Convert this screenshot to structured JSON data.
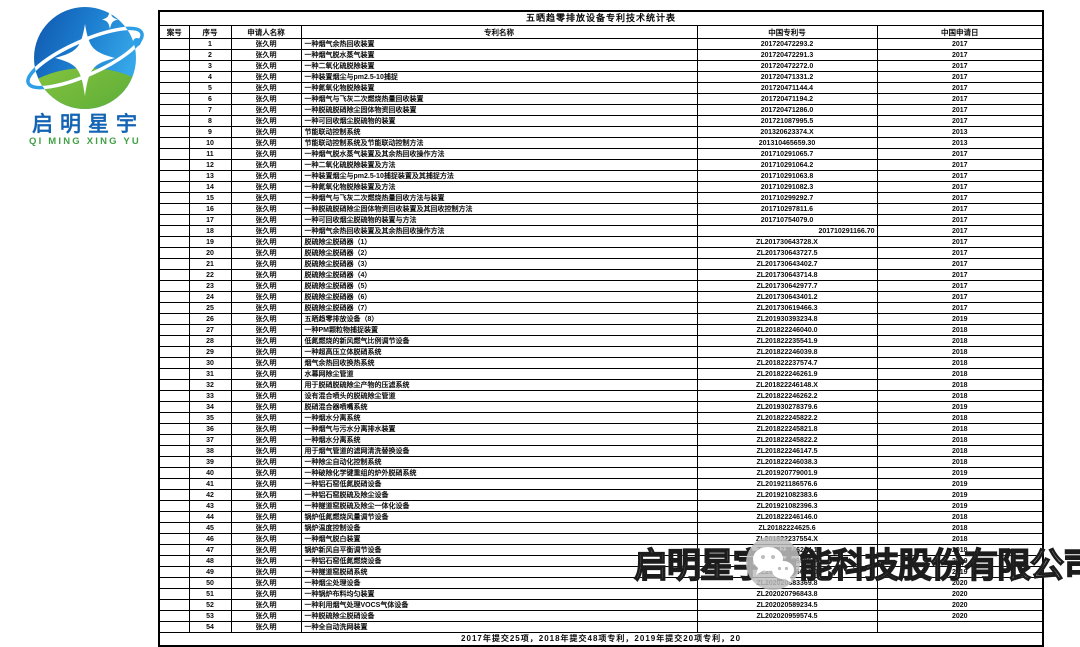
{
  "logo": {
    "name_cn": "启明星宇",
    "name_en": "QI MING XING YU",
    "colors": {
      "blue_dark": "#1259b5",
      "blue_light": "#2e9fe6",
      "green": "#4caf50"
    }
  },
  "table": {
    "title": "五晒趋零排放设备专利技术统计表",
    "headers": [
      "案号",
      "序号",
      "申请人名称",
      "专利名称",
      "中国专利号",
      "中国申请日"
    ],
    "applicant": "张久明",
    "rows": [
      {
        "s": "1",
        "n": "一种烟气余热回收装置",
        "p": "201720472293.2",
        "d": "2017"
      },
      {
        "s": "2",
        "n": "一种烟气脱水蒸气装置",
        "p": "201720472291.3",
        "d": "2017"
      },
      {
        "s": "3",
        "n": "一种二氧化硫脱除装置",
        "p": "201720472272.0",
        "d": "2017"
      },
      {
        "s": "4",
        "n": "一种装置烟尘与pm2.5-10捕捉",
        "p": "201720471331.2",
        "d": "2017"
      },
      {
        "s": "5",
        "n": "一种氮氧化物脱除装置",
        "p": "201720471144.4",
        "d": "2017"
      },
      {
        "s": "6",
        "n": "一种烟气与飞灰二次燃烧热量回收装置",
        "p": "201720471194.2",
        "d": "2017"
      },
      {
        "s": "7",
        "n": "一种脱硫脱硝除尘固体物资回收装置",
        "p": "201720471286.0",
        "d": "2017"
      },
      {
        "s": "8",
        "n": "一种可回收烟尘脱硫物的装置",
        "p": "201721087995.5",
        "d": "2017"
      },
      {
        "s": "9",
        "n": "节能联动控制系统",
        "p": "201320623374.X",
        "d": "2013"
      },
      {
        "s": "10",
        "n": "节能联动控制系统及节能联动控制方法",
        "p": "201310465659.30",
        "d": "2013"
      },
      {
        "s": "11",
        "n": "一种烟气脱水蒸气装置及其余热回收操作方法",
        "p": "201710291065.7",
        "d": "2017"
      },
      {
        "s": "12",
        "n": "一种二氧化硫脱除装置及方法",
        "p": "201710291064.2",
        "d": "2017"
      },
      {
        "s": "13",
        "n": "一种装置烟尘与pm2.5-10捕捉装置及其捕捉方法",
        "p": "201710291063.8",
        "d": "2017"
      },
      {
        "s": "14",
        "n": "一种氮氧化物脱除装置及方法",
        "p": "201710291082.3",
        "d": "2017"
      },
      {
        "s": "15",
        "n": "一种烟气与飞灰二次燃烧热量回收方法与装置",
        "p": "201710299292.7",
        "d": "2017"
      },
      {
        "s": "16",
        "n": "一种脱硫脱硝除尘固体物资回收装置及其回收控制方法",
        "p": "201710297811.6",
        "d": "2017"
      },
      {
        "s": "17",
        "n": "一种可回收烟尘脱硫物的装置与方法",
        "p": "201710754079.0",
        "d": "2017"
      },
      {
        "s": "18",
        "n": "一种烟气余热回收装置及其余热回收操作方法",
        "p": "201710291166.70",
        "d": "2017",
        "align": "right"
      },
      {
        "s": "19",
        "n": "脱硫除尘脱硝器（1）",
        "p": "ZL201730643728.X",
        "d": "2017"
      },
      {
        "s": "20",
        "n": "脱硫除尘脱硝器（2）",
        "p": "ZL201730643727.5",
        "d": "2017"
      },
      {
        "s": "21",
        "n": "脱硫除尘脱硝器（3）",
        "p": "ZL201730643402.7",
        "d": "2017"
      },
      {
        "s": "22",
        "n": "脱硫除尘脱硝器（4）",
        "p": "ZL201730643714.8",
        "d": "2017"
      },
      {
        "s": "23",
        "n": "脱硫除尘脱硝器（5）",
        "p": "ZL201730642977.7",
        "d": "2017"
      },
      {
        "s": "24",
        "n": "脱硫除尘脱硝器（6）",
        "p": "ZL201730643401.2",
        "d": "2017"
      },
      {
        "s": "25",
        "n": "脱硫除尘脱硝器（7）",
        "p": "ZL201730619466.3",
        "d": "2017"
      },
      {
        "s": "26",
        "n": "五晒趋零排放设备（8）",
        "p": "ZL201930393234.8",
        "d": "2019"
      },
      {
        "s": "27",
        "n": "一种PM颗粒物捕捉装置",
        "p": "ZL201822246040.0",
        "d": "2018"
      },
      {
        "s": "28",
        "n": "低氮燃烧的新风燃气比例调节设备",
        "p": "ZL201822235541.9",
        "d": "2018"
      },
      {
        "s": "29",
        "n": "一种超高压立体脱硝系统",
        "p": "ZL201822246039.8",
        "d": "2018"
      },
      {
        "s": "30",
        "n": "烟气余热回收换热系统",
        "p": "ZL201822237574.7",
        "d": "2018"
      },
      {
        "s": "31",
        "n": "水幕网除尘管道",
        "p": "ZL201822246261.9",
        "d": "2018"
      },
      {
        "s": "32",
        "n": "用于脱硝脱硫除尘产物的压滤系统",
        "p": "ZL201822246148.X",
        "d": "2018"
      },
      {
        "s": "33",
        "n": "设有混合喷头的脱硫除尘管道",
        "p": "ZL201822246262.2",
        "d": "2018"
      },
      {
        "s": "34",
        "n": "脱硝混合器喷嘴系统",
        "p": "ZL201930278379.6",
        "d": "2019"
      },
      {
        "s": "35",
        "n": "一种烟水分离系统",
        "p": "ZL201822245822.2",
        "d": "2018"
      },
      {
        "s": "36",
        "n": "一种烟气与污水分离排水装置",
        "p": "ZL201822245821.8",
        "d": "2018"
      },
      {
        "s": "37",
        "n": "一种烟水分离系统",
        "p": "ZL201822245822.2",
        "d": "2018"
      },
      {
        "s": "38",
        "n": "用于烟气管道的滤网清洗替换设备",
        "p": "ZL201822246147.5",
        "d": "2018"
      },
      {
        "s": "39",
        "n": "一种除尘自动化控制系统",
        "p": "ZL201822246038.3",
        "d": "2018"
      },
      {
        "s": "40",
        "n": "一种破除化学键重组的炉外脱硝系统",
        "p": "ZL201920779001.9",
        "d": "2019"
      },
      {
        "s": "41",
        "n": "一种铝石窑低氮脱硝设备",
        "p": "ZL201921186576.6",
        "d": "2019"
      },
      {
        "s": "42",
        "n": "一种铝石窑脱硫及除尘设备",
        "p": "ZL201921082383.6",
        "d": "2019"
      },
      {
        "s": "43",
        "n": "一种隧道窑脱硫及除尘一体化设备",
        "p": "ZL201921082396.3",
        "d": "2019"
      },
      {
        "s": "44",
        "n": "锅炉低氮燃烧风量调节设备",
        "p": "ZL201822246146.0",
        "d": "2018"
      },
      {
        "s": "45",
        "n": "锅炉温度控制设备",
        "p": "ZL20182224625.6",
        "d": "2018"
      },
      {
        "s": "46",
        "n": "一种烟气脱白装置",
        "p": "ZL201822237554.X",
        "d": "2018"
      },
      {
        "s": "47",
        "n": "锅炉新风自平衡调节设备",
        "p": "ZL201822246264.1",
        "d": "2018"
      },
      {
        "s": "48",
        "n": "一种铝石窑低氮燃烧设备",
        "p": "ZL201921186526.4",
        "d": "2019"
      },
      {
        "s": "49",
        "n": "一种隧道窑脱硝系统",
        "p": "ZL201921186672.0",
        "d": "2019"
      },
      {
        "s": "50",
        "n": "一种烟尘处理设备",
        "p": "ZL202020683369.8",
        "d": "2020"
      },
      {
        "s": "51",
        "n": "一种锅炉布料均匀装置",
        "p": "ZL202020796843.8",
        "d": "2020"
      },
      {
        "s": "52",
        "n": "一种利用烟气处理VOCS气体设备",
        "p": "ZL202020589234.5",
        "d": "2020"
      },
      {
        "s": "53",
        "n": "一种脱硫除尘脱硝设备",
        "p": "ZL202020959574.5",
        "d": "2020"
      },
      {
        "s": "54",
        "n": "一种全自动洗网装置",
        "p": "",
        "d": ""
      }
    ],
    "footer": "2017年提交25项，2018年提交48项专利，2019年提交20项专利，20"
  },
  "watermark": {
    "text": "启明星宇节能科技股份有限公司",
    "icon": "wechat-icon"
  }
}
